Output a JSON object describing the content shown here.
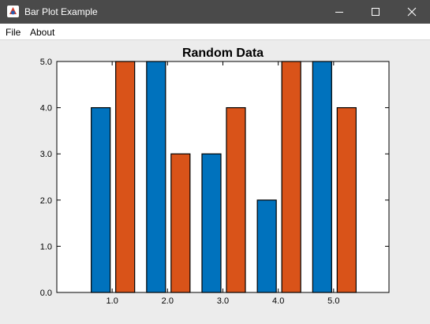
{
  "window": {
    "title": "Bar Plot Example",
    "icon": "java-app-icon",
    "controls": [
      "minimize-icon",
      "maximize-icon",
      "close-icon"
    ]
  },
  "menu": {
    "items": [
      {
        "label": "File"
      },
      {
        "label": "About"
      }
    ]
  },
  "colors": {
    "titlebar": "#4a4a4a",
    "series1": "#0072bd",
    "series2": "#d95319",
    "plot_background": "#ffffff",
    "window_background": "#ececec"
  },
  "chart_data": {
    "type": "bar",
    "title": "Random Data",
    "xlabel": "",
    "ylabel": "",
    "categories": [
      "1.0",
      "2.0",
      "3.0",
      "4.0",
      "5.0"
    ],
    "x": [
      1.0,
      2.0,
      3.0,
      4.0,
      5.0
    ],
    "series": [
      {
        "values": [
          4,
          5,
          3,
          2,
          5
        ],
        "color": "#0072bd"
      },
      {
        "values": [
          5,
          3,
          4,
          5,
          4
        ],
        "color": "#d95319"
      }
    ],
    "xlim": [
      0.0,
      6.0
    ],
    "ylim": [
      0.0,
      5.0
    ],
    "yticks": [
      "0.0",
      "1.0",
      "2.0",
      "3.0",
      "4.0",
      "5.0"
    ],
    "grid": false,
    "legend": "none"
  }
}
